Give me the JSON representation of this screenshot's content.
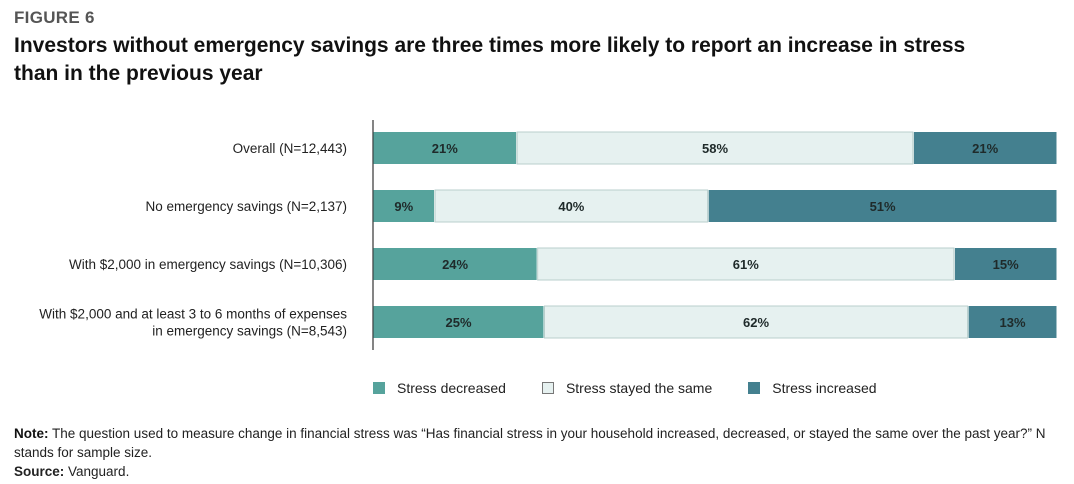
{
  "figure_label": "FIGURE 6",
  "title": "Investors without emergency savings are three times more likely to report an increase in stress than in the previous year",
  "colors": {
    "decreased": "#56a39c",
    "same": "#e6f1f0",
    "increased": "#44808f",
    "axis": "#333333"
  },
  "chart_data": {
    "type": "bar",
    "orientation": "horizontal",
    "stacked": true,
    "percent": true,
    "categories": [
      [
        "Overall (N=12,443)"
      ],
      [
        "No emergency savings (N=2,137)"
      ],
      [
        "With $2,000 in emergency savings (N=10,306)"
      ],
      [
        "With $2,000 and at least 3 to 6 months of expenses",
        "in emergency savings (N=8,543)"
      ]
    ],
    "series": [
      {
        "name": "Stress decreased",
        "values": [
          21,
          9,
          24,
          25
        ],
        "labels": [
          "21%",
          "9%",
          "24%",
          "25%"
        ]
      },
      {
        "name": "Stress stayed the same",
        "values": [
          58,
          40,
          61,
          62
        ],
        "labels": [
          "58%",
          "40%",
          "61%",
          "62%"
        ]
      },
      {
        "name": "Stress increased",
        "values": [
          21,
          51,
          15,
          13
        ],
        "labels": [
          "21%",
          "51%",
          "15%",
          "13%"
        ]
      }
    ],
    "xlim": [
      0,
      100
    ],
    "legend_position": "bottom"
  },
  "legend": {
    "decreased": "Stress decreased",
    "same": "Stress stayed the same",
    "increased": "Stress increased"
  },
  "note": {
    "label": "Note:",
    "text": " The question used to measure change in financial stress was “Has financial stress in your household increased, decreased, or stayed the same over the past year?” N stands for sample size."
  },
  "source": {
    "label": "Source:",
    "text": " Vanguard."
  }
}
